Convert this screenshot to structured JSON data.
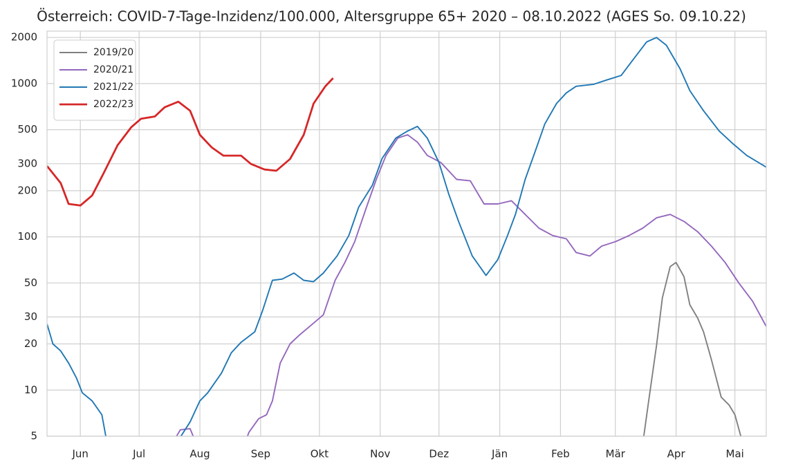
{
  "chart_data": {
    "type": "line",
    "title": "Österreich: COVID-7-Tage-Inzidenz/100.000, Altersgruppe 65+ 2020 – 08.10.2022 (AGES So. 09.10.22)",
    "log_scale": true,
    "grid": true,
    "legend": "upper left",
    "xlim": [
      -17,
      350
    ],
    "xticks": [
      {
        "value": 0,
        "label": "Jun"
      },
      {
        "value": 30,
        "label": "Jul"
      },
      {
        "value": 61,
        "label": "Aug"
      },
      {
        "value": 92,
        "label": "Sep"
      },
      {
        "value": 122,
        "label": "Okt"
      },
      {
        "value": 153,
        "label": "Nov"
      },
      {
        "value": 183,
        "label": "Dez"
      },
      {
        "value": 214,
        "label": "Jän"
      },
      {
        "value": 245,
        "label": "Feb"
      },
      {
        "value": 273,
        "label": "Mär"
      },
      {
        "value": 304,
        "label": "Apr"
      },
      {
        "value": 334,
        "label": "Mai"
      }
    ],
    "ylim": [
      5,
      2200
    ],
    "yticks": [
      5,
      10,
      20,
      30,
      50,
      100,
      200,
      300,
      500,
      1000,
      2000
    ],
    "series": [
      {
        "name": "2019/20",
        "color": "#808080",
        "x": [
          287,
          290,
          294,
          297,
          301,
          304,
          308,
          311,
          315,
          318,
          322,
          327,
          331,
          334,
          338
        ],
        "values": [
          4.5,
          8.5,
          19.5,
          40,
          64,
          68,
          55,
          36,
          29.5,
          24,
          15.8,
          9,
          8,
          6.9,
          4.5
        ]
      },
      {
        "name": "2020/21",
        "color": "#9467bd",
        "x": [
          47,
          51,
          56,
          59,
          75,
          84,
          86,
          91,
          95,
          98,
          102,
          107,
          112,
          117,
          124,
          130,
          135,
          140,
          146,
          151,
          156,
          162,
          167,
          172,
          177,
          184,
          192,
          199,
          206,
          213,
          220,
          227,
          234,
          241,
          248,
          253,
          260,
          266,
          273,
          280,
          287,
          294,
          301,
          308,
          315,
          322,
          329,
          336,
          343,
          350
        ],
        "values": [
          4.5,
          5.5,
          5.6,
          4.5,
          4.1,
          4.5,
          5.3,
          6.5,
          6.9,
          8.5,
          15,
          20,
          23,
          26,
          31,
          52,
          68,
          93,
          156,
          237,
          340,
          441,
          463,
          415,
          340,
          305,
          237,
          232,
          164,
          164,
          172,
          140,
          114,
          102,
          97,
          79,
          75,
          87,
          93,
          102,
          114,
          133,
          140,
          126,
          108,
          87,
          68,
          50,
          38,
          26
        ]
      },
      {
        "name": "2021/22",
        "color": "#1f77b4",
        "x": [
          -17,
          -14,
          -10,
          -6,
          -2,
          1,
          6,
          11,
          13,
          17,
          29,
          47,
          56,
          61,
          65,
          72,
          77,
          82,
          89,
          93,
          98,
          103,
          109,
          114,
          119,
          124,
          131,
          137,
          142,
          149,
          154,
          161,
          167,
          172,
          177,
          183,
          188,
          193,
          200,
          207,
          213,
          218,
          222,
          227,
          232,
          237,
          243,
          248,
          253,
          262,
          269,
          276,
          281,
          289,
          294,
          299,
          306,
          311,
          318,
          326,
          333,
          340,
          350
        ],
        "values": [
          27,
          20,
          18,
          15,
          12,
          9.6,
          8.5,
          6.9,
          5,
          4.1,
          3.7,
          4.1,
          6.2,
          8.5,
          9.6,
          12.9,
          17.5,
          20.5,
          24,
          33,
          52,
          53,
          58,
          52,
          51,
          58,
          75,
          102,
          156,
          217,
          325,
          441,
          490,
          525,
          441,
          305,
          190,
          126,
          75,
          56,
          71,
          102,
          140,
          237,
          358,
          545,
          742,
          870,
          960,
          990,
          1060,
          1130,
          1375,
          1870,
          2000,
          1780,
          1250,
          900,
          665,
          490,
          405,
          340,
          285
        ]
      },
      {
        "name": "2022/23",
        "color": "#d62728",
        "x": [
          -17,
          -10,
          -6,
          0,
          6,
          12,
          19,
          26,
          31,
          38,
          43,
          50,
          56,
          61,
          67,
          73,
          79,
          82,
          87,
          94,
          100,
          107,
          114,
          119,
          125,
          129
        ],
        "values": [
          290,
          224,
          164,
          160,
          186,
          262,
          396,
          520,
          590,
          610,
          700,
          762,
          665,
          463,
          384,
          339,
          339,
          339,
          299,
          275,
          270,
          322,
          463,
          740,
          959,
          1086
        ]
      }
    ]
  }
}
